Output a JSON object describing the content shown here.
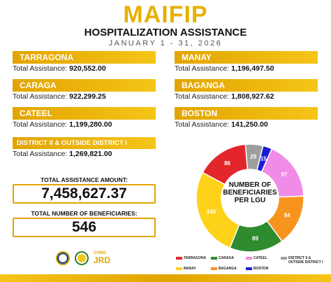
{
  "header": {
    "title": "MAIFIP",
    "subtitle": "HOSPITALIZATION ASSISTANCE",
    "period": "JANUARY 1 - 31, 2026"
  },
  "lgus_left": [
    {
      "name": "TARRAGONA",
      "label": "Total Assistance:",
      "amount": "920,552.00"
    },
    {
      "name": "CARAGA",
      "label": "Total Assistance:",
      "amount": "922,299.25"
    },
    {
      "name": "CATEEL",
      "label": "Total Assistance:",
      "amount": "1,199,280.00"
    },
    {
      "name": "DISTRICT II & OUTSIDE DISTRICT I",
      "label": "Total Assistance:",
      "amount": "1,269,821.00"
    }
  ],
  "lgus_right": [
    {
      "name": "MANAY",
      "label": "Total Assistance:",
      "amount": "1,196,497.50"
    },
    {
      "name": "BAGANGA",
      "label": "Total Assistance:",
      "amount": "1,808,927.62"
    },
    {
      "name": "BOSTON",
      "label": "Total Assistance:",
      "amount": "141,250.00"
    }
  ],
  "totals": {
    "amount_label": "TOTAL ASSISTANCE AMOUNT:",
    "amount": "7,458,627.37",
    "beneficiaries_label": "TOTAL NUMBER OF BENEFICIARIES:",
    "beneficiaries": "546"
  },
  "footer": {
    "logo_top": "CONG",
    "logo_bottom": "JRD"
  },
  "chart_data": {
    "type": "donut",
    "title": "NUMBER OF BENEFICIARIES PER LGU",
    "categories": [
      "TARRAGONA",
      "CARAGA",
      "CATEEL",
      "DISTRICT II & OUTSIDE DISTRICT I",
      "MANAY",
      "BAGANGA",
      "BOSTON"
    ],
    "values": [
      86,
      89,
      97,
      29,
      146,
      84,
      15
    ],
    "colors": [
      "#e3262b",
      "#2e8b2e",
      "#f08be8",
      "#9e9e9e",
      "#ffd21a",
      "#f7941d",
      "#1c1cd8"
    ]
  }
}
